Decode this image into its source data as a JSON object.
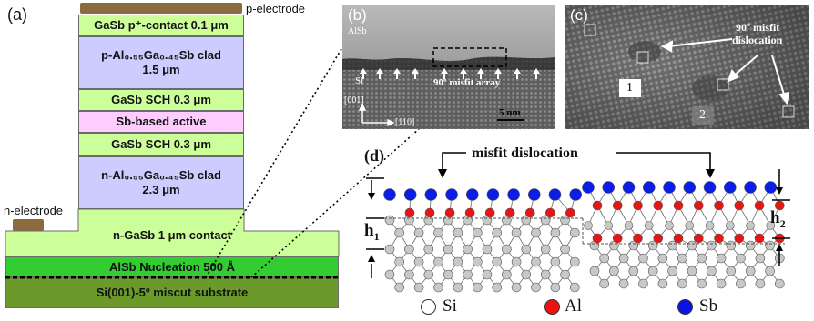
{
  "panel_a": {
    "label": "(a)",
    "p_electrode_label": "p-electrode",
    "n_electrode_label": "n-electrode",
    "layers": {
      "cap": "GaSb p⁺-contact 0.1 μm",
      "p_clad_line1": "p-Al₀.₅₅Ga₀.₄₅Sb clad",
      "p_clad_line2": "1.5 μm",
      "sch_top": "GaSb SCH 0.3 μm",
      "active": "Sb-based active",
      "sch_bottom": "GaSb SCH 0.3 μm",
      "n_clad_line1": "n-Al₀.₅₅Ga₀.₄₅Sb clad",
      "n_clad_line2": "2.3 μm",
      "n_contact": "n-GaSb 1 μm contact",
      "nucleation": "AlSb Nucleation 500 Å",
      "substrate": "Si(001)-5º miscut substrate"
    },
    "colors": {
      "light_green": "#ccff99",
      "clad_purple": "#ccccff",
      "active_pink": "#ffccff",
      "nucleation_green": "#33cc33",
      "substrate_olive": "#6b9a2b",
      "electrode_brown": "#8b6a3e"
    }
  },
  "panel_b": {
    "label": "(b)",
    "top_material": "AlSb",
    "bottom_material": "Si",
    "annotation": "90º misfit array",
    "axis_vertical": "[001]",
    "axis_horizontal": "[110]",
    "scale_bar": "5 nm"
  },
  "panel_c": {
    "label": "(c)",
    "annotation_line1": "90º misfit",
    "annotation_line2": "dislocation",
    "marker_1": "1",
    "marker_2": "2"
  },
  "panel_d": {
    "label": "(d)",
    "title": "misfit dislocation",
    "h1_label": "h",
    "h1_sub": "1",
    "h2_label": "h",
    "h2_sub": "2",
    "legend": [
      {
        "name": "Si",
        "color": "#ffffff"
      },
      {
        "name": "Al",
        "color": "#ee1111"
      },
      {
        "name": "Sb",
        "color": "#0a14e6"
      }
    ],
    "colors": {
      "si": "#c8c8c8",
      "al": "#e81515",
      "sb": "#0a1ee6"
    }
  }
}
